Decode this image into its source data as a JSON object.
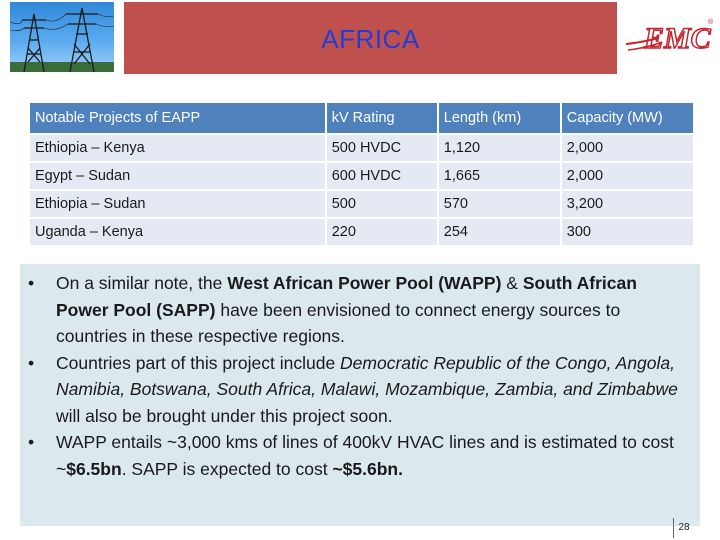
{
  "header": {
    "title": "AFRICA",
    "logo_text": "EMC",
    "logo_mark": "®",
    "photo_icon": "power-transmission-towers"
  },
  "table": {
    "headers": [
      "Notable Projects of EAPP",
      "kV Rating",
      "Length (km)",
      "Capacity (MW)"
    ],
    "rows": [
      [
        "Ethiopia – Kenya",
        "500 HVDC",
        "1,120",
        "2,000"
      ],
      [
        "Egypt – Sudan",
        "600 HVDC",
        "1,665",
        "2,000"
      ],
      [
        "Ethiopia – Sudan",
        "500",
        "570",
        "3,200"
      ],
      [
        "Uganda – Kenya",
        "220",
        "254",
        "300"
      ]
    ]
  },
  "notes": {
    "bullet_char": "•",
    "b1": {
      "t1": "On a similar note, the ",
      "b1": "West African Power Pool (WAPP)",
      "t2": " & ",
      "b2": "South African Power Pool (SAPP)",
      "t3": " have been envisioned to connect energy sources to countries in these respective regions."
    },
    "b2": {
      "t1": "Countries part of this project include ",
      "i1": "Democratic Republic of the Congo, Angola, Namibia, Botswana, South Africa, Malawi, Mozambique, Zambia, and Zimbabwe",
      "t2": " will also be brought under this project soon."
    },
    "b3": {
      "t1": "WAPP entails ~3,000 kms of lines of 400kV HVAC lines and is estimated to cost ~",
      "b1": "$6.5bn",
      "t2": ". SAPP is expected to cost ",
      "b2": "~$5.6bn."
    }
  },
  "footer": {
    "page_number": "28"
  },
  "colors": {
    "title_banner": "#c0504d",
    "title_text": "#1f3ed6",
    "table_header": "#4f81bd",
    "table_row": "#e4e9f3",
    "notes_background": "#dbe9ef",
    "logo_red": "#c6262e"
  }
}
